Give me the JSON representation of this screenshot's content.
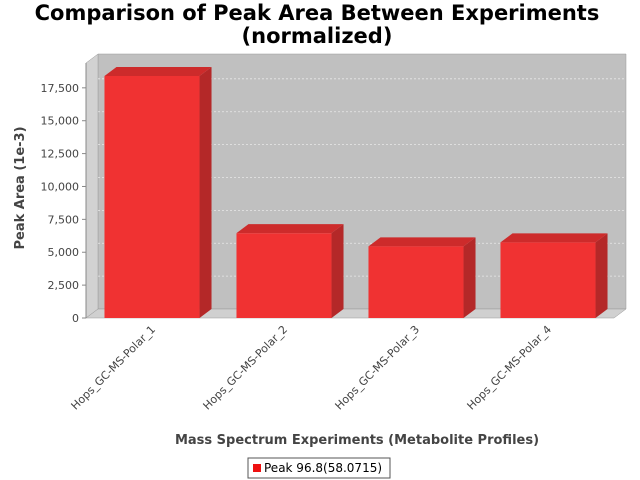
{
  "chart_data": {
    "type": "bar",
    "title_line1": "Comparison of Peak Area Between Experiments",
    "title_line2": "(normalized)",
    "xlabel": "Mass Spectrum Experiments (Metabolite Profiles)",
    "ylabel": "Peak Area (1e-3)",
    "categories": [
      "Hops_GC-MS-Polar_1",
      "Hops_GC-MS-Polar_2",
      "Hops_GC-MS-Polar_3",
      "Hops_GC-MS-Polar_4"
    ],
    "series": [
      {
        "name": "Peak 96.8(58.0715)",
        "values": [
          18400,
          6450,
          5450,
          5750
        ]
      }
    ],
    "yticks": [
      0,
      2500,
      5000,
      7500,
      10000,
      12500,
      15000,
      17500
    ],
    "ytick_labels": [
      "0",
      "2,500",
      "5,000",
      "7,500",
      "10,000",
      "12,500",
      "15,000",
      "17,500"
    ],
    "ylim": [
      0,
      18400
    ],
    "grid": true,
    "style": "3d",
    "legend_position": "bottom-center",
    "colors": {
      "bar_front": "#f03232",
      "bar_side": "#b42828",
      "bar_top": "#cd2b2b",
      "plot_background": "#c0c0c0",
      "plot_wall": "#d2d2d2",
      "plot_floor": "#d0d0d0",
      "gridline": "#e8e8e8"
    }
  }
}
